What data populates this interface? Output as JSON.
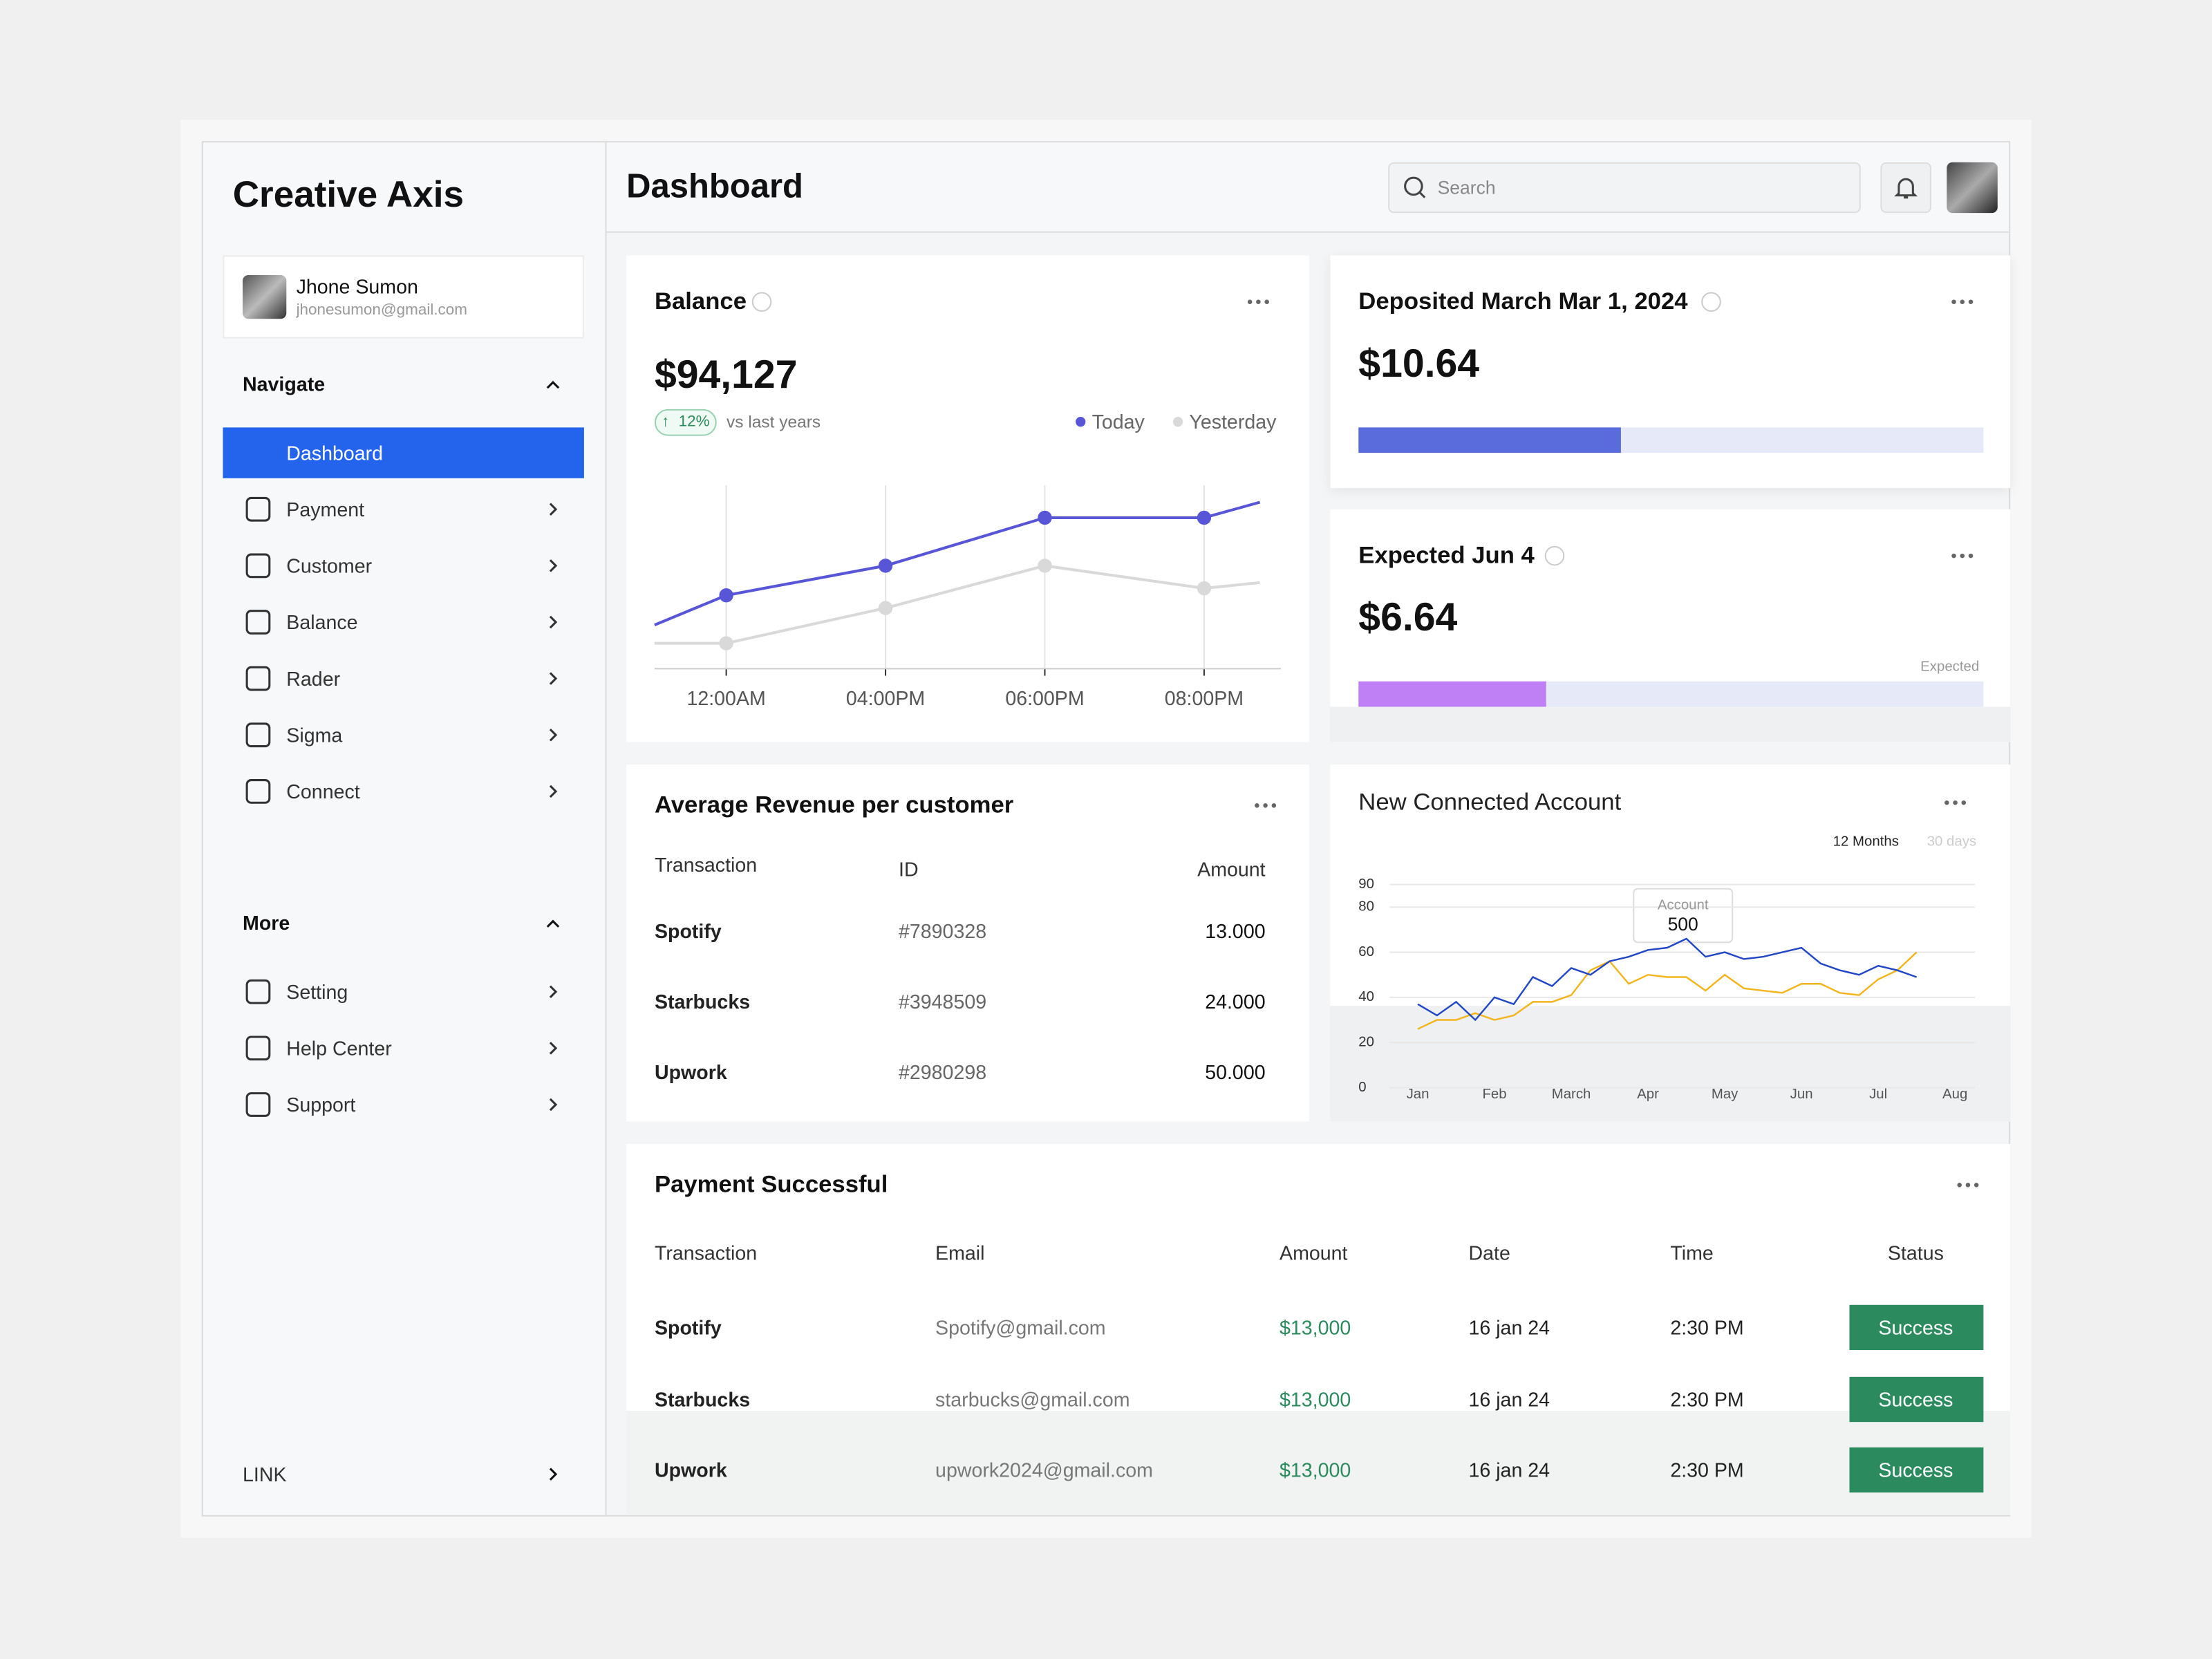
{
  "sidebar": {
    "brand": "Creative Axis",
    "user": {
      "name": "Jhone Sumon",
      "email": "jhonesumon@gmail.com"
    },
    "navigate": {
      "title": "Navigate",
      "items": [
        "Dashboard",
        "Payment",
        "Customer",
        "Balance",
        "Rader",
        "Sigma",
        "Connect"
      ],
      "active": 0
    },
    "more": {
      "title": "More",
      "items": [
        "Setting",
        "Help Center",
        "Support"
      ]
    },
    "link": "LINK"
  },
  "header": {
    "title": "Dashboard",
    "search_placeholder": "Search"
  },
  "balance": {
    "title": "Balance",
    "amount": "$94,127",
    "change": "12%",
    "change_note": "vs last years",
    "chart": {
      "type": "line",
      "x": [
        -0.45,
        0,
        1,
        2,
        3,
        3.35
      ],
      "xlim": [
        -0.45,
        3.5
      ],
      "xticks": [
        {
          "value": 0,
          "label": "12:00AM"
        },
        {
          "value": 1,
          "label": "04:00PM"
        },
        {
          "value": 2,
          "label": "06:00PM"
        },
        {
          "value": 3,
          "label": "08:00PM"
        }
      ],
      "ylim": [
        0,
        130
      ],
      "series": [
        {
          "name": "Today",
          "color": "#5856d6",
          "values": [
            31,
            52,
            73,
            107,
            107,
            118
          ]
        },
        {
          "name": "Yesterday",
          "color": "#d9d9d9",
          "values": [
            18,
            18,
            43,
            73,
            57,
            61
          ]
        }
      ]
    }
  },
  "deposited": {
    "title": "Deposited March Mar 1, 2024",
    "amount": "$10.64",
    "progress": 42,
    "color": "#5a6bdb"
  },
  "expected": {
    "title": "Expected Jun 4",
    "amount": "$6.64",
    "label": "Expected",
    "progress": 30,
    "color": "#bf80f5"
  },
  "avg_revenue": {
    "title": "Average Revenue per customer",
    "columns": [
      "Transaction",
      "ID",
      "Amount"
    ],
    "rows": [
      [
        "Spotify",
        "#7890328",
        "13.000"
      ],
      [
        "Starbucks",
        "#3948509",
        "24.000"
      ],
      [
        "Upwork",
        "#2980298",
        "50.000"
      ]
    ]
  },
  "new_account": {
    "title": "New Connected Account",
    "toggles": [
      "12 Months",
      "30 days"
    ],
    "tooltip": {
      "label": "Account",
      "value": "500"
    },
    "chart": {
      "type": "line",
      "x": [
        0,
        0.25,
        0.5,
        0.75,
        1,
        1.25,
        1.5,
        1.75,
        2,
        2.25,
        2.5,
        2.75,
        3,
        3.25,
        3.5,
        3.75,
        4,
        4.25,
        4.5,
        4.75,
        5,
        5.25,
        5.5,
        5.75,
        6,
        6.25,
        6.5
      ],
      "xlim": [
        0,
        7
      ],
      "xticks": [
        {
          "value": 0,
          "label": "Jan"
        },
        {
          "value": 1,
          "label": "Feb"
        },
        {
          "value": 2,
          "label": "March"
        },
        {
          "value": 3,
          "label": "Apr"
        },
        {
          "value": 4,
          "label": "May"
        },
        {
          "value": 5,
          "label": "Jun"
        },
        {
          "value": 6,
          "label": "Jul"
        },
        {
          "value": 7,
          "label": "Aug"
        }
      ],
      "ylim": [
        0,
        90
      ],
      "yticks": [
        0,
        20,
        40,
        60,
        80,
        90
      ],
      "series": [
        {
          "color": "#2447c4",
          "values": [
            37,
            32,
            38,
            30,
            40,
            37,
            49,
            45,
            53,
            50,
            56,
            58,
            61,
            62,
            66,
            58,
            60,
            57,
            58,
            60,
            62,
            55,
            52,
            50,
            54,
            52,
            49
          ]
        },
        {
          "color": "#f2b51d",
          "values": [
            26,
            30,
            30,
            33,
            30,
            32,
            38,
            38,
            41,
            52,
            56,
            46,
            50,
            49,
            49,
            43,
            50,
            44,
            43,
            42,
            46,
            46,
            42,
            41,
            48,
            52,
            60
          ]
        }
      ]
    }
  },
  "payments": {
    "title": "Payment Successful",
    "columns": [
      "Transaction",
      "Email",
      "Amount",
      "Date",
      "Time",
      "Status"
    ],
    "rows": [
      [
        "Spotify",
        "Spotify@gmail.com",
        "$13,000",
        "16 jan 24",
        "2:30 PM",
        "Success"
      ],
      [
        "Starbucks",
        "starbucks@gmail.com",
        "$13,000",
        "16 jan 24",
        "2:30 PM",
        "Success"
      ],
      [
        "Upwork",
        "upwork2024@gmail.com",
        "$13,000",
        "16 jan 24",
        "2:30 PM",
        "Success"
      ]
    ]
  }
}
